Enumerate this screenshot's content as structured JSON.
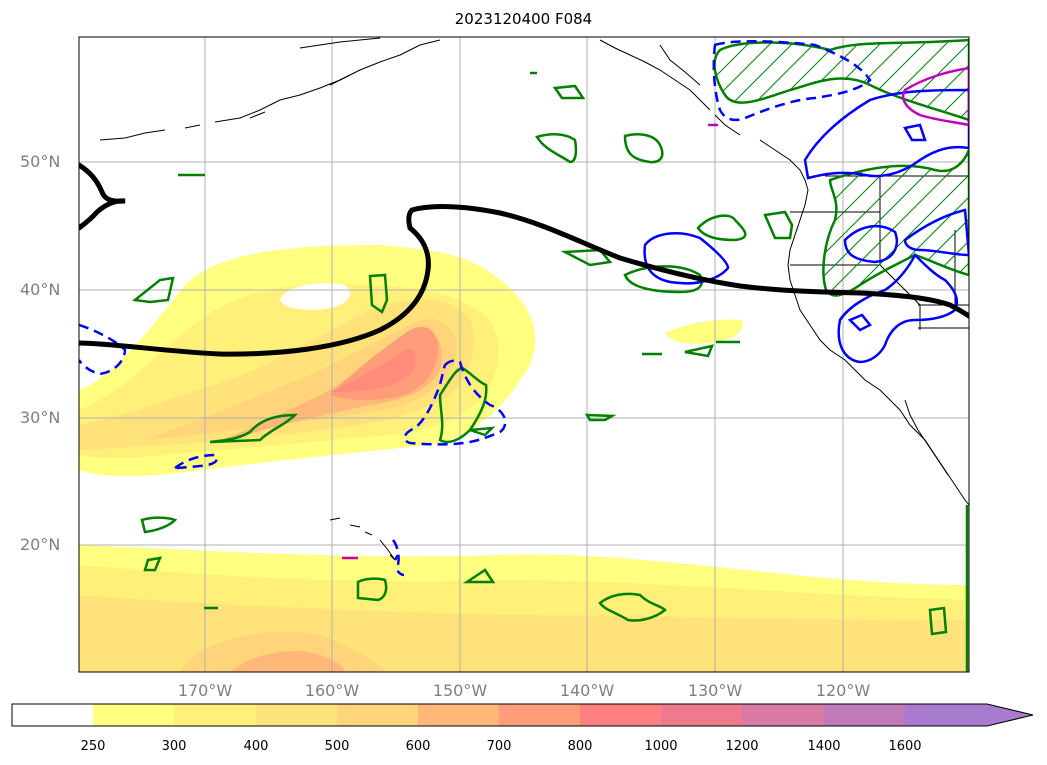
{
  "title": "2023120400 F084",
  "latitudes": [
    "50°N",
    "40°N",
    "30°N",
    "20°N"
  ],
  "longitudes": [
    "170°W",
    "160°W",
    "150°W",
    "140°W",
    "130°W",
    "120°W"
  ],
  "colorbar": {
    "labels": [
      "250",
      "300",
      "400",
      "500",
      "600",
      "700",
      "800",
      "1000",
      "1200",
      "1400",
      "1600"
    ],
    "colors": [
      "#ffffff",
      "#ffff80",
      "#fff07a",
      "#ffe27a",
      "#ffd47a",
      "#ffb87a",
      "#ff9c7a",
      "#ff8080",
      "#ee7a8e",
      "#d87aa2",
      "#c07ab8",
      "#a87ad0"
    ]
  },
  "colors": {
    "green_contour": "#008000",
    "blue_contour": "#0000ff",
    "magenta_contour": "#c000c0",
    "black_contour": "#000000"
  }
}
